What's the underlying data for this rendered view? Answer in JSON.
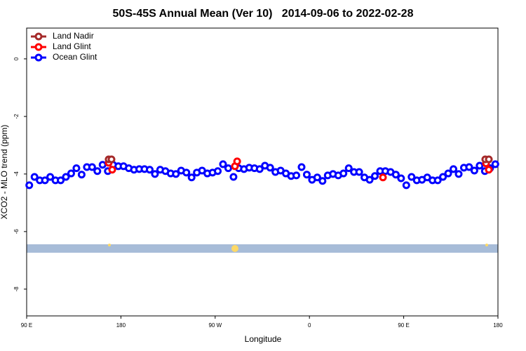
{
  "chart_data": {
    "type": "scatter",
    "title": "50S-45S Annual Mean (Ver 10)   2014-09-06 to 2022-02-28",
    "x_label": "Longitude",
    "y_label": "XCO2 - MLO trend (ppm)",
    "xlim": [
      90,
      540
    ],
    "ylim": [
      -8.93,
      1.07
    ],
    "xticks": [
      {
        "value": 90,
        "label": "90 E"
      },
      180,
      {
        "value": 270,
        "label": "90 W"
      },
      {
        "value": 360,
        "label": "0"
      },
      {
        "value": 450,
        "label": "90 E"
      },
      {
        "value": 540,
        "label": "180"
      }
    ],
    "yticks": [
      -8,
      -6,
      -4,
      -2,
      0
    ],
    "legend": "top-left",
    "series": [
      {
        "name": "Land Nadir",
        "color": "#a52a2a",
        "x": [
          168.3,
          171,
          527.9,
          531.3
        ],
        "values": [
          -3.49,
          -3.49,
          -3.49,
          -3.49
        ]
      },
      {
        "name": "Land Glint",
        "color": "#ff0000",
        "x": [
          168.3,
          171.7,
          288.9,
          291,
          430.2,
          528.6,
          531.3
        ],
        "values": [
          -3.61,
          -3.85,
          -3.73,
          -3.56,
          -4.12,
          -3.63,
          -3.85
        ]
      },
      {
        "name": "Ocean Glint",
        "color": "#0000ff",
        "x": [
          92.5,
          97.5,
          102.5,
          107.5,
          112.5,
          117.5,
          122.5,
          127.5,
          132.5,
          137.5,
          142.5,
          147.5,
          152.5,
          157.5,
          162.5,
          167.5,
          172.5,
          177.5,
          182.5,
          187.5,
          192.5,
          197.5,
          202.5,
          207.5,
          212.5,
          217.5,
          222.5,
          227.5,
          232.5,
          237.5,
          242.5,
          247.5,
          252.5,
          257.5,
          262.5,
          267.5,
          272.5,
          277.5,
          282.5,
          287.5,
          292.5,
          297.5,
          302.5,
          307.5,
          312.5,
          317.5,
          322.5,
          327.5,
          332.5,
          337.5,
          342.5,
          347.5,
          352.5,
          357.5,
          362.5,
          367.5,
          372.5,
          377.5,
          382.5,
          387.5,
          392.5,
          397.5,
          402.5,
          407.5,
          412.5,
          417.5,
          422.5,
          427.5,
          432.5,
          437.5,
          442.5,
          447.5,
          452.5,
          457.5,
          462.5,
          467.5,
          472.5,
          477.5,
          482.5,
          487.5,
          492.5,
          497.5,
          502.5,
          507.5,
          512.5,
          517.5,
          522.5,
          527.5,
          532.5,
          537.5
        ],
        "values": [
          -4.39,
          -4.1,
          -4.22,
          -4.22,
          -4.1,
          -4.22,
          -4.22,
          -4.1,
          -3.98,
          -3.8,
          -4.02,
          -3.76,
          -3.76,
          -3.9,
          -3.68,
          -3.9,
          -3.68,
          -3.73,
          -3.73,
          -3.8,
          -3.85,
          -3.83,
          -3.83,
          -3.85,
          -4.0,
          -3.85,
          -3.9,
          -3.98,
          -4.0,
          -3.88,
          -3.95,
          -4.12,
          -3.95,
          -3.88,
          -3.98,
          -3.95,
          -3.9,
          -3.66,
          -3.8,
          -4.1,
          -3.8,
          -3.83,
          -3.78,
          -3.8,
          -3.83,
          -3.71,
          -3.78,
          -3.93,
          -3.88,
          -3.98,
          -4.07,
          -4.05,
          -3.76,
          -4.02,
          -4.2,
          -4.12,
          -4.24,
          -4.05,
          -4.0,
          -4.05,
          -3.98,
          -3.8,
          -3.93,
          -3.93,
          -4.12,
          -4.2,
          -4.07,
          -3.9,
          -3.9,
          -3.93,
          -4.02,
          -4.15,
          -4.39,
          -4.1,
          -4.22,
          -4.2,
          -4.12,
          -4.22,
          -4.22,
          -4.1,
          -3.98,
          -3.83,
          -4.0,
          -3.78,
          -3.76,
          -3.88,
          -3.71,
          -3.9,
          -3.8,
          -3.66
        ]
      }
    ]
  }
}
